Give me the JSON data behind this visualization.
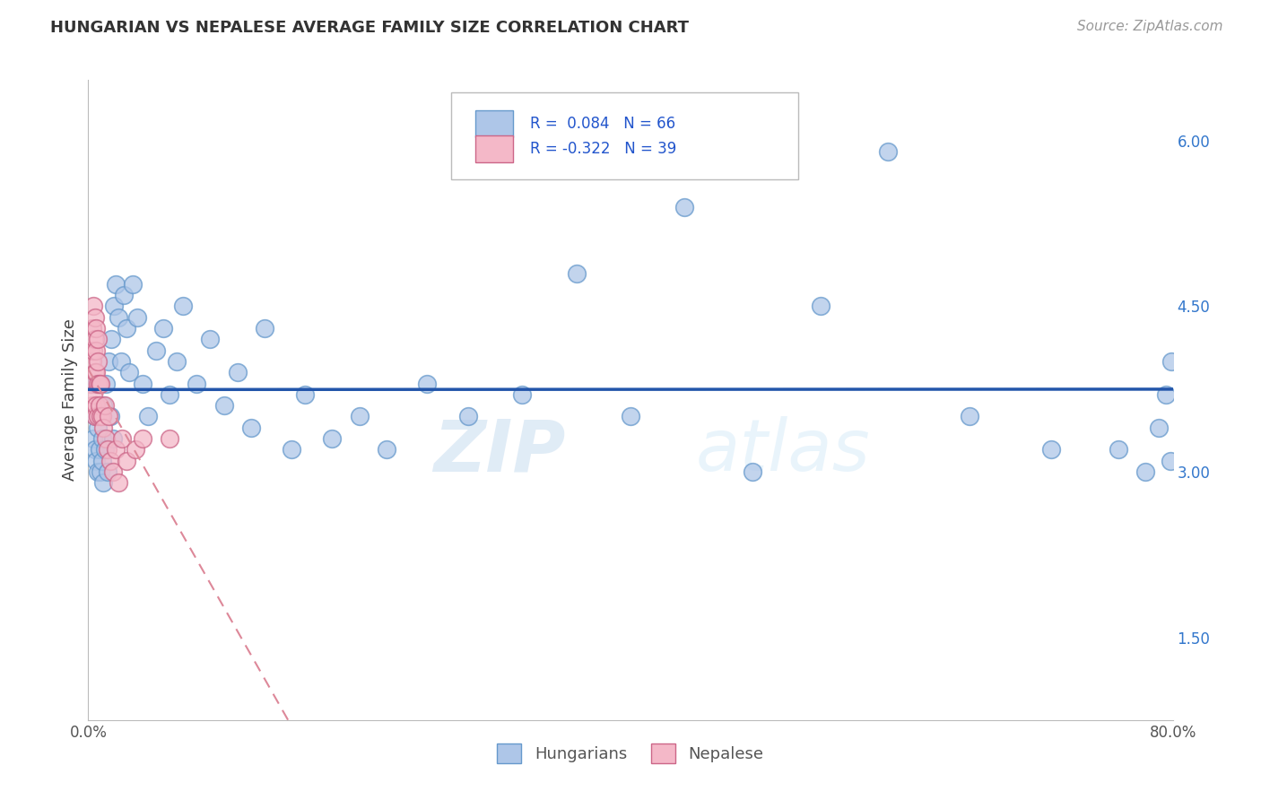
{
  "title": "HUNGARIAN VS NEPALESE AVERAGE FAMILY SIZE CORRELATION CHART",
  "source_text": "Source: ZipAtlas.com",
  "ylabel": "Average Family Size",
  "xlim": [
    0.0,
    0.8
  ],
  "ylim": [
    0.75,
    6.55
  ],
  "yticks": [
    1.5,
    3.0,
    4.5,
    6.0
  ],
  "xticks": [
    0.0,
    0.1,
    0.2,
    0.3,
    0.4,
    0.5,
    0.6,
    0.7,
    0.8
  ],
  "xtick_labels": [
    "0.0%",
    "",
    "",
    "",
    "",
    "",
    "",
    "",
    "80.0%"
  ],
  "background_color": "#ffffff",
  "grid_color": "#d0d0d0",
  "watermark_zip": "ZIP",
  "watermark_atlas": "atlas",
  "legend_line1": "R =  0.084   N = 66",
  "legend_line2": "R = -0.322   N = 39",
  "hungarian_color": "#aec6e8",
  "hungarian_edge": "#6699cc",
  "nepalese_color": "#f4b8c8",
  "nepalese_edge": "#cc6688",
  "trend_hungarian_color": "#2255aa",
  "trend_nepalese_color": "#dd8899",
  "hungarian_x": [
    0.004,
    0.005,
    0.005,
    0.006,
    0.006,
    0.007,
    0.007,
    0.008,
    0.008,
    0.009,
    0.009,
    0.01,
    0.01,
    0.011,
    0.011,
    0.012,
    0.013,
    0.014,
    0.015,
    0.016,
    0.017,
    0.018,
    0.019,
    0.02,
    0.022,
    0.024,
    0.026,
    0.028,
    0.03,
    0.033,
    0.036,
    0.04,
    0.044,
    0.05,
    0.055,
    0.06,
    0.065,
    0.07,
    0.08,
    0.09,
    0.1,
    0.11,
    0.12,
    0.13,
    0.15,
    0.16,
    0.18,
    0.2,
    0.22,
    0.25,
    0.28,
    0.32,
    0.36,
    0.4,
    0.44,
    0.49,
    0.54,
    0.59,
    0.65,
    0.71,
    0.76,
    0.78,
    0.79,
    0.795,
    0.798,
    0.799
  ],
  "hungarian_y": [
    3.3,
    3.2,
    3.5,
    3.1,
    3.8,
    3.0,
    3.4,
    3.2,
    3.6,
    3.0,
    3.5,
    3.1,
    3.3,
    2.9,
    3.6,
    3.2,
    3.8,
    3.0,
    4.0,
    3.5,
    4.2,
    3.3,
    4.5,
    4.7,
    4.4,
    4.0,
    4.6,
    4.3,
    3.9,
    4.7,
    4.4,
    3.8,
    3.5,
    4.1,
    4.3,
    3.7,
    4.0,
    4.5,
    3.8,
    4.2,
    3.6,
    3.9,
    3.4,
    4.3,
    3.2,
    3.7,
    3.3,
    3.5,
    3.2,
    3.8,
    3.5,
    3.7,
    4.8,
    3.5,
    5.4,
    3.0,
    4.5,
    5.9,
    3.5,
    3.2,
    3.2,
    3.0,
    3.4,
    3.7,
    3.1,
    4.0
  ],
  "nepalese_x": [
    0.002,
    0.002,
    0.003,
    0.003,
    0.003,
    0.004,
    0.004,
    0.004,
    0.005,
    0.005,
    0.005,
    0.005,
    0.006,
    0.006,
    0.006,
    0.006,
    0.007,
    0.007,
    0.007,
    0.007,
    0.008,
    0.008,
    0.009,
    0.009,
    0.01,
    0.011,
    0.012,
    0.013,
    0.014,
    0.015,
    0.016,
    0.018,
    0.02,
    0.022,
    0.025,
    0.028,
    0.035,
    0.04,
    0.06
  ],
  "nepalese_y": [
    3.8,
    4.1,
    3.6,
    4.0,
    4.3,
    3.7,
    4.1,
    4.5,
    3.5,
    3.9,
    4.2,
    4.4,
    3.6,
    3.9,
    4.1,
    4.3,
    3.5,
    3.8,
    4.0,
    4.2,
    3.6,
    3.8,
    3.5,
    3.8,
    3.5,
    3.4,
    3.6,
    3.3,
    3.2,
    3.5,
    3.1,
    3.0,
    3.2,
    2.9,
    3.3,
    3.1,
    3.2,
    3.3,
    3.3
  ]
}
